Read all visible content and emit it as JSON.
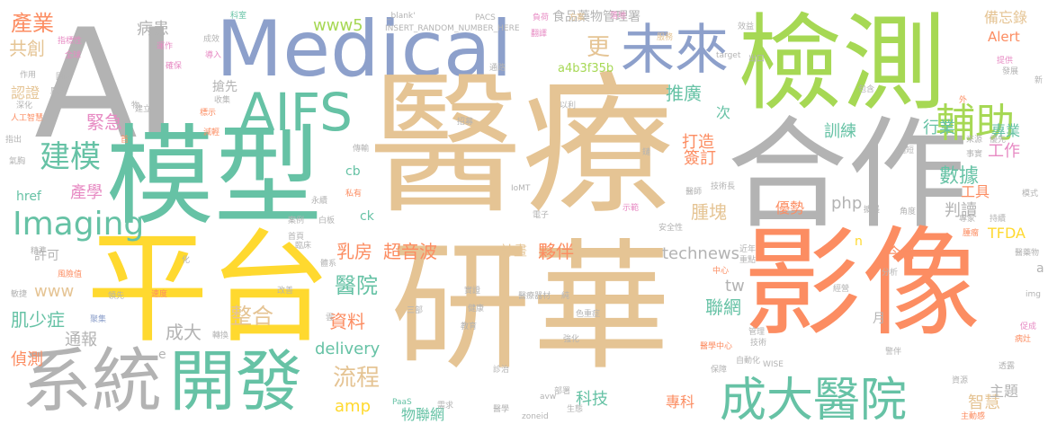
{
  "palette": {
    "gray": "#b3b3b3",
    "tan": "#e5c494",
    "blue": "#8da0cb",
    "green": "#a6d854",
    "teal": "#66c2a5",
    "orange": "#fc8d62",
    "pink": "#e78ac3",
    "yellow": "#ffd92f"
  },
  "words": {
    "ai": "AI",
    "medical": "Medical",
    "yiliao": "醫療",
    "jiance": "檢測",
    "moxing": "模型",
    "hezuo": "合作",
    "pingtai": "平台",
    "yanhua": "研華",
    "yingxiang": "影像",
    "xitong": "系統",
    "kaifa": "開發",
    "chengdayiyuan": "成大醫院",
    "weilai": "未來",
    "aifs": "AIFS",
    "fuzhu": "輔助",
    "jianmo": "建模",
    "imaging": "Imaging",
    "chanye": "產業",
    "gongchuang": "共創",
    "bingguan": "病患",
    "www5": "www5",
    "geng": "更",
    "shipin": "食品藥物管理署",
    "beiwanglu": "備忘錄",
    "alert": "Alert",
    "a4b3f35b": "a4b3f35b",
    "tuiguang": "推廣",
    "jinji": "緊急",
    "renzheng": "認證",
    "qiangxian": "搶先",
    "chanxue": "產學",
    "ci": "次",
    "xunlian": "訓練",
    "hangye": "行業",
    "zhuanye": "專業",
    "gongzuo": "工作",
    "dazao": "打造",
    "qianding": "簽訂",
    "shuju": "數據",
    "gongju": "工具",
    "php": "php",
    "zhongkuai": "腫塊",
    "youshi": "優勢",
    "pandu": "判讀",
    "tfda": "TFDA",
    "jinri": "今日",
    "href": "href",
    "ck": "ck",
    "cb": "cb",
    "xuke": "許可",
    "rufang": "乳房",
    "chaoyinbo": "超音波",
    "jihua": "計畫",
    "huoban": "夥伴",
    "technews": "technews",
    "yiyuan": "醫院",
    "www": "www",
    "jishaozheng": "肌少症",
    "tongbao": "通報",
    "zhenghe": "整合",
    "ziliao": "資料",
    "lianwang": "聯網",
    "tw": "tw",
    "chengda": "成大",
    "zhence": "偵測",
    "delivery": "delivery",
    "liucheng": "流程",
    "amp": "amp",
    "wulianwang": "物聯網",
    "keji": "科技",
    "zhuanke": "專科",
    "zhihui": "智慧",
    "zhuti": "主題",
    "yue": "月",
    "n": "n",
    "e": "e",
    "a": "a",
    "pacs": "PACS",
    "insert": "INSERT_RANDOM_NUMBER_HERE",
    "blank": "_blank'",
    "target": "target",
    "iomt": "IoMT",
    "wise": "WISE",
    "paas": "PaaS",
    "zoneid": "zoneid",
    "avw": "avw",
    "img": "img",
    "fuze": "負荷",
    "fangan": "方案",
    "fuwu": "服務",
    "kecheng": "科室",
    "fanyi": "翻譯",
    "fuheng": "落地",
    "zhibiaoxing": "指標性",
    "quanqiu": "全球",
    "jianzuo": "運作",
    "quebao": "確保",
    "zuoyong": "作用",
    "guonei": "國內",
    "pangda": "龐大",
    "shenhua": "深化",
    "rengongzhineng": "人工智慧",
    "zhichu": "指出",
    "qixiong": "氣胸",
    "jingshi": "精準",
    "fengxian": "風險值",
    "minjie": "敏捷",
    "julei": "聚集",
    "lingxian": "領先",
    "sudu": "速度",
    "gaishan": "改善",
    "tixi": "體系",
    "linchuang": "臨床",
    "zhuanhuan": "轉換",
    "anli": "案例",
    "baibing": "白板",
    "shishi": "實證",
    "sanbu": "三部",
    "zhenzhi": "診治",
    "qianghua": "強化",
    "sezhong": "色重症",
    "yiliaoqixie": "醫療器材",
    "yiliaozhongxin": "醫學中心",
    "jishuzhang": "技術長",
    "yishi": "醫師",
    "zidonghua": "自動化",
    "zhongxin": "中心",
    "jinnian": "近年",
    "zhongdian": "重點",
    "jingyin": "經營",
    "guanli": "管理",
    "jishu": "技術",
    "baobiao": "保障",
    "jingban": "警伴",
    "ziyuan": "資源",
    "tongcheng": "透露",
    "zhuodong": "主動感",
    "yiyaowu": "醫藥物",
    "cuicheng": "促成",
    "bingzao": "病灶",
    "tigong": "提供",
    "fazhan": "發展",
    "moshi": "模式",
    "laiyuan": "來源",
    "youxian": "優先",
    "shishi2": "事實",
    "zhuanjia": "專家",
    "chixu": "持續",
    "zhongliu": "腫瘤",
    "chuanshu": "傳輸",
    "jianchi": "減輕",
    "biaoshi": "標示",
    "shanghui": "收集",
    "jiandi": "建立",
    "siyou": "私有",
    "yongxu": "永續",
    "dianzi": "電子",
    "shifan": "示範",
    "anquanxing": "安全性",
    "shouye": "首頁",
    "yiqian": "以利",
    "chukou": "出口",
    "baohan": "包含",
    "xiaoyi": "效益",
    "zhaomu": "招募",
    "bulu": "部署",
    "xuqiu": "需求",
    "yixue": "醫學",
    "shengtai": "生態",
    "daoru": "導入",
    "chengxiao": "成效",
    "hua": "化",
    "wu": "物",
    "shou": "首",
    "yu": "雲",
    "chun": "純",
    "wai": "外",
    "xin": "新",
    "lian": "鏈",
    "suo": "縮短",
    "tongzhi": "通路",
    "zhangu": "擴展",
    "jiaodu": "角度",
    "fenxi": "分析",
    "jiaoyu": "教育",
    "jiankang": "健康"
  }
}
